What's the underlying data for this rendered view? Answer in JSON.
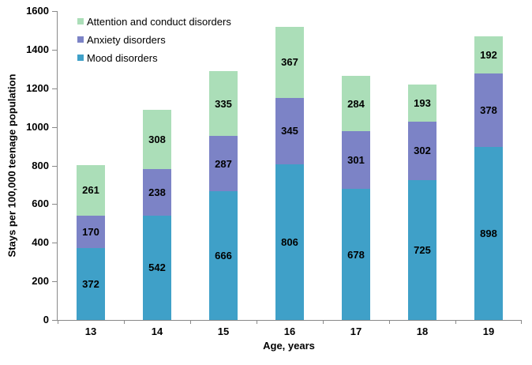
{
  "chart_data": {
    "type": "bar",
    "stacked": true,
    "categories": [
      "13",
      "14",
      "15",
      "16",
      "17",
      "18",
      "19"
    ],
    "series": [
      {
        "name": "Mood disorders",
        "color": "#3FA0C8",
        "values": [
          372,
          542,
          666,
          806,
          678,
          725,
          898
        ]
      },
      {
        "name": "Anxiety disorders",
        "color": "#7C83C6",
        "values": [
          170,
          238,
          287,
          345,
          301,
          302,
          378
        ]
      },
      {
        "name": "Attention and conduct disorders",
        "color": "#ABDEB8",
        "values": [
          261,
          308,
          335,
          367,
          284,
          193,
          192
        ]
      }
    ],
    "legend": {
      "position": "top-left",
      "items": [
        {
          "label": "Attention and conduct disorders",
          "color": "#ABDEB8"
        },
        {
          "label": "Anxiety disorders",
          "color": "#7C83C6"
        },
        {
          "label": "Mood disorders",
          "color": "#3FA0C8"
        }
      ]
    },
    "xlabel": "Age, years",
    "ylabel": "Stays per 100,000 teenage population",
    "ylim": [
      0,
      1600
    ],
    "ytick_step": 200,
    "grid": false,
    "axis_color": "#898989",
    "totals": [
      803,
      1088,
      1288,
      1518,
      1263,
      1220,
      1468
    ]
  }
}
